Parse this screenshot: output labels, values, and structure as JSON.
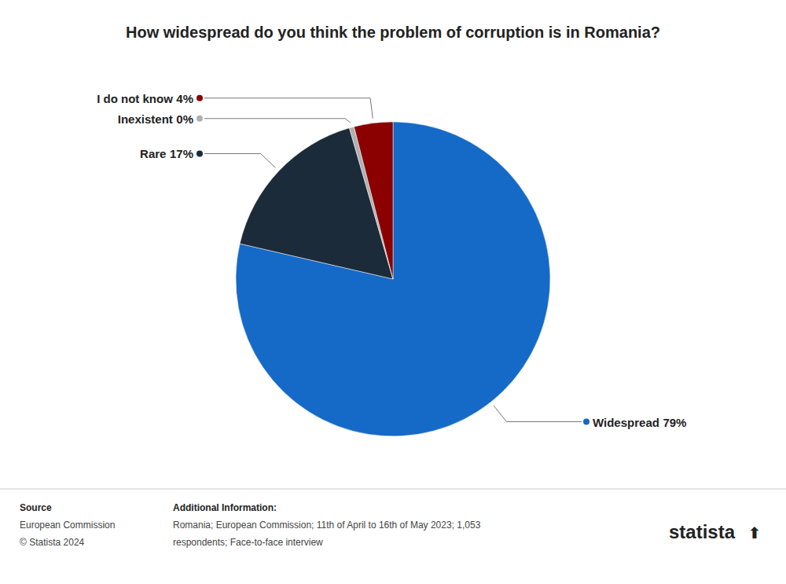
{
  "chart_data": {
    "type": "pie",
    "title": "How widespread do you think the problem of corruption is in Romania?",
    "categories": [
      "Widespread",
      "Rare",
      "Inexistent",
      "I do not know"
    ],
    "values": [
      79,
      17,
      0.5,
      4
    ],
    "value_labels": [
      "79%",
      "17%",
      "0%",
      "4%"
    ],
    "colors": [
      "#1569C7",
      "#1C2B3A",
      "#B0B0B0",
      "#8B0000"
    ],
    "data_labels": true,
    "annotations": [
      "Source",
      "European Commission",
      "© Statista 2024",
      "Additional Information:",
      "Romania; European Commission; 11th of April to 16th of May 2023; 1,053",
      "respondents; Face-to-face interview",
      "statista",
      "⬆"
    ]
  }
}
